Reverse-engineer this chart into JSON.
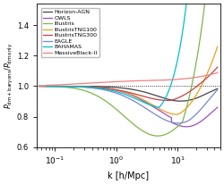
{
  "title": "",
  "xlabel": "k [h/Mpc]",
  "ylabel": "$P_{\\rm dm+baryons}/P_{\\rm dm\\,only}$",
  "xlim": [
    0.05,
    50
  ],
  "ylim": [
    0.6,
    1.54
  ],
  "yticks": [
    0.6,
    0.8,
    1.0,
    1.2,
    1.4
  ],
  "xtick_labels": [
    "$10^{-1}$",
    "$10^{0}$",
    "$10^{1}$"
  ],
  "xtick_vals": [
    0.1,
    1.0,
    10.0
  ],
  "legend_labels": [
    "Horizon-AGN",
    "OWLS",
    "Illustris",
    "IllustrisTNG100",
    "IllustrisTNG300",
    "EAGLE",
    "BAHAMAS",
    "MassiveBlack-II"
  ],
  "colors": {
    "Horizon-AGN": "#444444",
    "OWLS": "#9b4dca",
    "Illustris": "#7db648",
    "IllustrisTNG100": "#e8a020",
    "IllustrisTNG300": "#c94040",
    "EAGLE": "#7788cc",
    "BAHAMAS": "#00c0c8",
    "MassiveBlack-II": "#f08080"
  },
  "background_color": "#ffffff"
}
